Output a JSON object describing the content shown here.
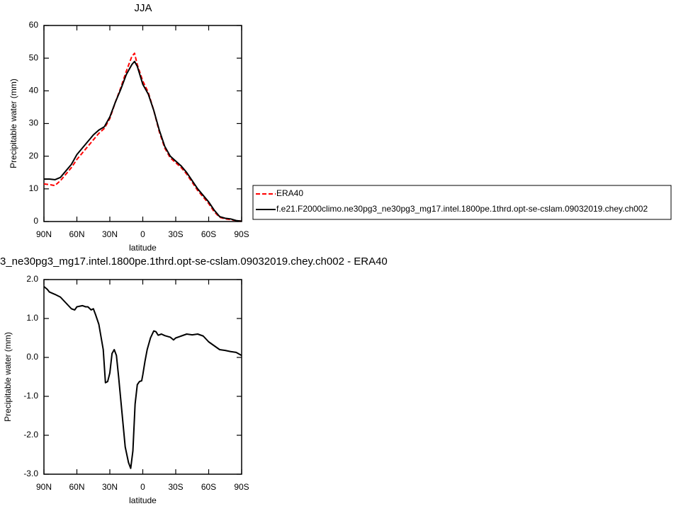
{
  "chart_data": [
    {
      "type": "line",
      "title": "JJA",
      "xlabel": "latitude",
      "ylabel": "Precipitable water (mm)",
      "x": [
        90,
        85,
        80,
        75,
        70,
        65,
        60,
        55,
        50,
        45,
        40,
        35,
        30,
        25,
        20,
        15,
        10,
        7.5,
        5,
        0,
        -5,
        -10,
        -15,
        -20,
        -25,
        -30,
        -35,
        -40,
        -45,
        -50,
        -55,
        -60,
        -65,
        -70,
        -75,
        -80,
        -85,
        -90
      ],
      "xlim": [
        90,
        -90
      ],
      "xticks": [
        {
          "value": 90,
          "label": "90N"
        },
        {
          "value": 60,
          "label": "60N"
        },
        {
          "value": 30,
          "label": "30N"
        },
        0,
        {
          "value": -30,
          "label": "30S"
        },
        {
          "value": -60,
          "label": "60S"
        },
        {
          "value": -90,
          "label": "90S"
        }
      ],
      "ylim": [
        0,
        60
      ],
      "yticks": [
        0,
        10,
        20,
        30,
        40,
        50,
        60
      ],
      "legend": "right",
      "series": [
        {
          "name": "ERA40",
          "color": "#ff0000",
          "dashed": true,
          "values": [
            11.5,
            11.3,
            11,
            12.5,
            14.5,
            16.5,
            19,
            21,
            23,
            25,
            27,
            28.5,
            31.5,
            36.5,
            41,
            46,
            50.5,
            51.5,
            48,
            43,
            39.5,
            34,
            27.5,
            22.5,
            19.5,
            18,
            16.5,
            14.5,
            12,
            9.5,
            7.5,
            5.5,
            3,
            1.3,
            0.8,
            0.6,
            0.3,
            0.1
          ]
        },
        {
          "name": "f.e21.F2000climo.ne30pg3_ne30pg3_mg17.intel.1800pe.1thrd.opt-se-cslam.09032019.chey.ch002",
          "color": "#000000",
          "dashed": false,
          "values": [
            13,
            13,
            12.8,
            13.5,
            15.5,
            17.5,
            20.5,
            22.5,
            24.5,
            26.5,
            28,
            29,
            32,
            36.5,
            40.5,
            45,
            48,
            49,
            47.5,
            42,
            39,
            34,
            28,
            23,
            20,
            18.5,
            17,
            15,
            12.5,
            10,
            8,
            6,
            3.5,
            1.5,
            1,
            0.8,
            0.3,
            0.1
          ]
        }
      ]
    },
    {
      "type": "line",
      "title": "3_ne30pg3_mg17.intel.1800pe.1thrd.opt-se-cslam.09032019.chey.ch002 - ERA40",
      "xlabel": "latitude",
      "ylabel": "Precipitable water (mm)",
      "x": [
        90,
        87,
        85,
        80,
        75,
        70,
        65,
        62,
        60,
        55,
        52,
        50,
        47,
        45,
        43,
        40,
        36,
        34,
        32,
        30,
        28,
        26,
        24,
        22,
        20,
        16,
        13,
        11,
        9,
        7,
        5,
        3,
        1,
        0,
        -2,
        -4,
        -7,
        -10,
        -12,
        -14,
        -17,
        -20,
        -25,
        -28,
        -30,
        -35,
        -40,
        -45,
        -50,
        -55,
        -60,
        -65,
        -70,
        -75,
        -80,
        -85,
        -90
      ],
      "xlim": [
        90,
        -90
      ],
      "xticks": [
        {
          "value": 90,
          "label": "90N"
        },
        {
          "value": 60,
          "label": "60N"
        },
        {
          "value": 30,
          "label": "30N"
        },
        0,
        {
          "value": -30,
          "label": "30S"
        },
        {
          "value": -60,
          "label": "60S"
        },
        {
          "value": -90,
          "label": "90S"
        }
      ],
      "ylim": [
        -3,
        2
      ],
      "yticks": [
        {
          "value": 2,
          "label": "2.0"
        },
        {
          "value": 1,
          "label": "1.0"
        },
        {
          "value": 0,
          "label": "0.0"
        },
        {
          "value": -1,
          "label": "-1.0"
        },
        {
          "value": -2,
          "label": "-2.0"
        },
        {
          "value": -3,
          "label": "-3.0"
        }
      ],
      "series": [
        {
          "color": "#000000",
          "dashed": false,
          "values": [
            1.82,
            1.75,
            1.68,
            1.62,
            1.55,
            1.4,
            1.25,
            1.22,
            1.3,
            1.33,
            1.3,
            1.3,
            1.22,
            1.25,
            1.1,
            0.85,
            0.2,
            -0.65,
            -0.62,
            -0.4,
            0.1,
            0.2,
            0.05,
            -0.5,
            -1.1,
            -2.3,
            -2.7,
            -2.85,
            -2.4,
            -1.2,
            -0.7,
            -0.62,
            -0.6,
            -0.45,
            -0.1,
            0.2,
            0.5,
            0.68,
            0.66,
            0.57,
            0.6,
            0.56,
            0.52,
            0.45,
            0.5,
            0.55,
            0.6,
            0.58,
            0.6,
            0.55,
            0.4,
            0.3,
            0.2,
            0.18,
            0.15,
            0.13,
            0.05
          ]
        }
      ]
    }
  ]
}
